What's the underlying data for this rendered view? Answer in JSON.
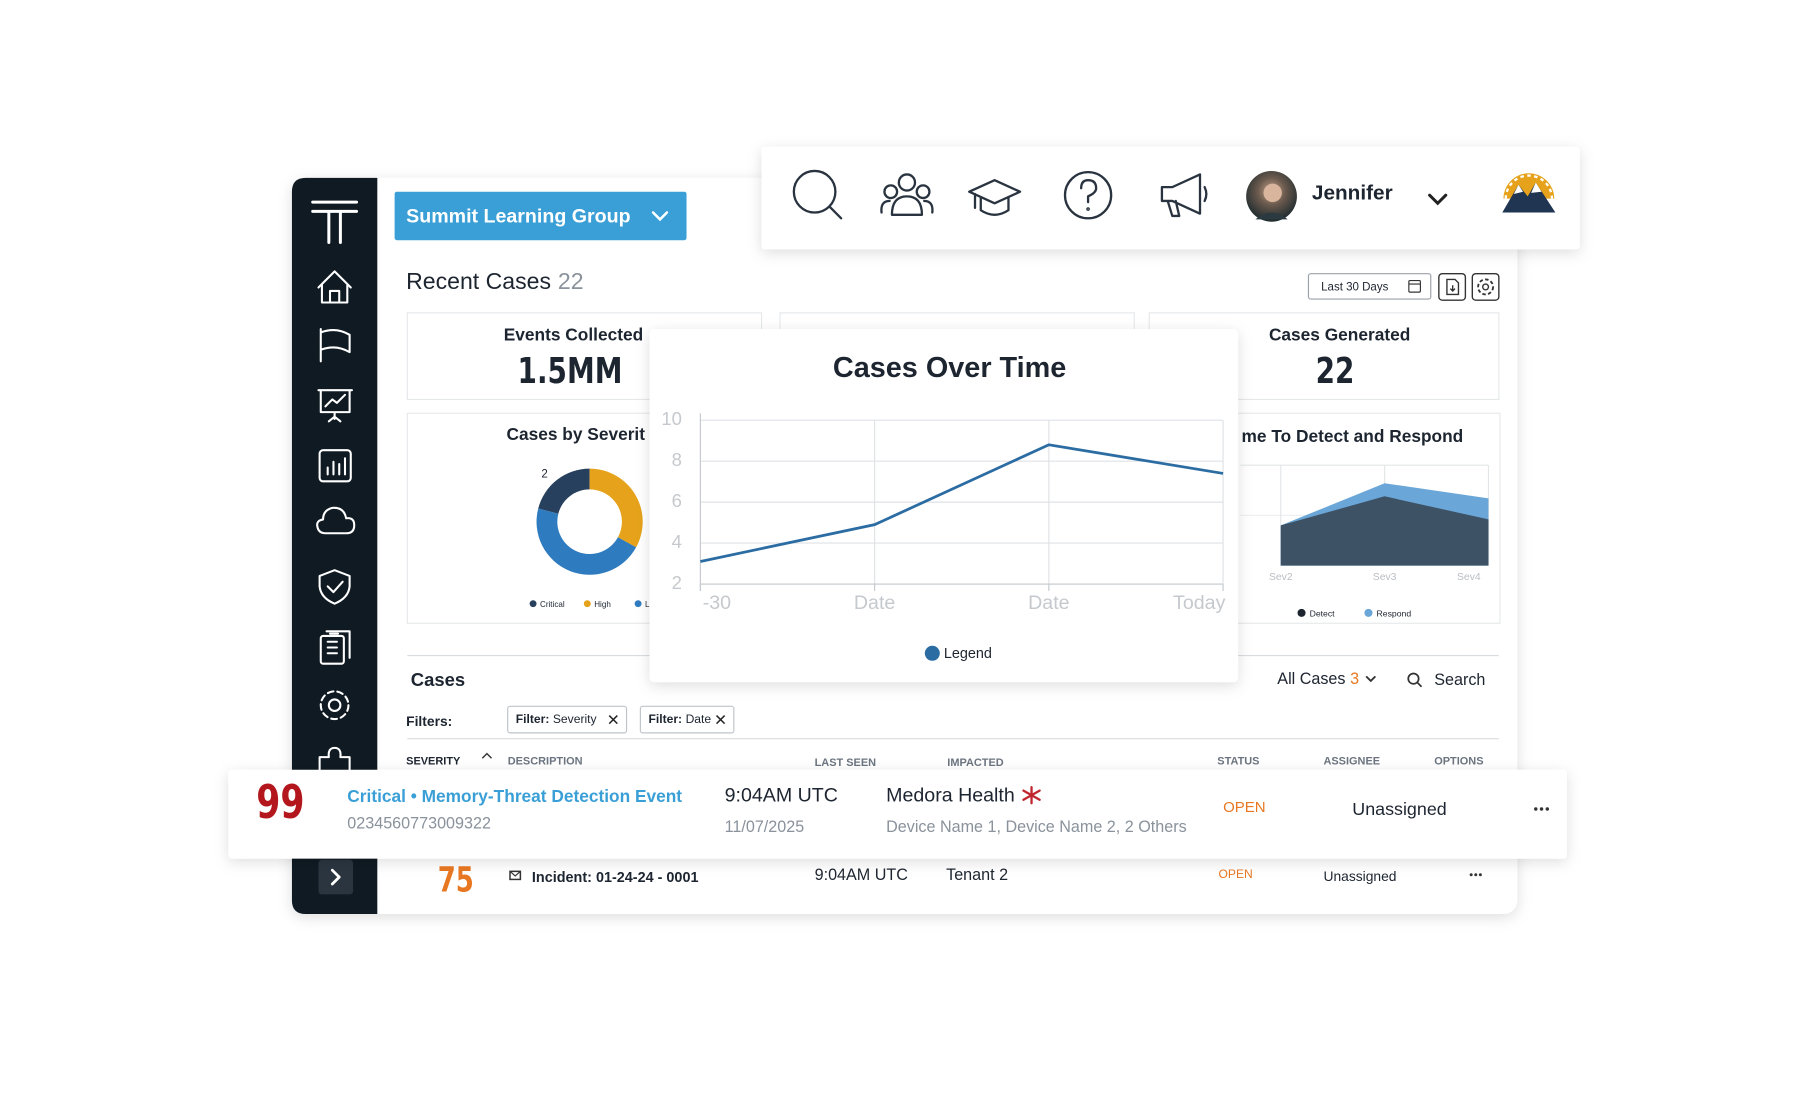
{
  "org_selector": "Summit Learning Group",
  "user": {
    "name": "Jennifer"
  },
  "header": {
    "title": "Recent Cases",
    "count": "22",
    "date_range": "Last 30 Days"
  },
  "kpis": [
    {
      "label": "Events Collected",
      "value": "1.5MM"
    },
    {
      "label": "Cases Generated",
      "value": "22"
    }
  ],
  "chart_data": [
    {
      "type": "line",
      "title": "Cases Over Time",
      "categories": [
        "-30",
        "Date",
        "Date",
        "Today"
      ],
      "series": [
        {
          "name": "Legend",
          "color": "#2b6ca3",
          "values": [
            3.1,
            4.9,
            8.8,
            7.4
          ]
        }
      ],
      "ylim": [
        2,
        10
      ],
      "yticks": [
        2,
        4,
        6,
        8,
        10
      ],
      "grid": true
    },
    {
      "type": "pie",
      "donut": true,
      "title": "Cases by Severit",
      "labels": [
        "Critical",
        "High",
        "L"
      ],
      "values": [
        21,
        33,
        46
      ],
      "colors": [
        "#27405e",
        "#e6a21a",
        "#2f7bbf"
      ],
      "annotation": "2"
    },
    {
      "type": "area",
      "title": "me To Detect and Respond",
      "categories": [
        "Sev2",
        "Sev3",
        "Sev4"
      ],
      "series": [
        {
          "name": "Detect",
          "color": "#3e5266",
          "values": [
            40,
            69,
            46
          ]
        },
        {
          "name": "Respond",
          "color": "#6aa6d8",
          "values": [
            40,
            82,
            67
          ]
        }
      ],
      "ylim": [
        0,
        100
      ],
      "grid": true
    }
  ],
  "cases": {
    "title": "Cases",
    "view": "All Cases",
    "view_count": "3",
    "search": "Search",
    "filters_label": "Filters:",
    "filters": [
      {
        "key": "Filter:",
        "value": "Severity"
      },
      {
        "key": "Filter:",
        "value": "Date"
      }
    ],
    "columns": [
      "SEVERITY",
      "DESCRIPTION",
      "LAST SEEN",
      "IMPACTED",
      "STATUS",
      "ASSIGNEE",
      "OPTIONS"
    ],
    "rows": [
      {
        "score": "99",
        "title": "Critical • Memory-Threat Detection Event",
        "id": "0234560773009322",
        "last_seen": "9:04AM UTC",
        "date": "11/07/2025",
        "impacted": "Medora Health",
        "devices": "Device Name 1, Device Name 2, 2 Others",
        "status": "OPEN",
        "assignee": "Unassigned"
      },
      {
        "score": "75",
        "title": "Incident: 01-24-24 - 0001",
        "last_seen": "9:04AM UTC",
        "impacted": "Tenant 2",
        "status": "OPEN",
        "assignee": "Unassigned"
      }
    ]
  }
}
